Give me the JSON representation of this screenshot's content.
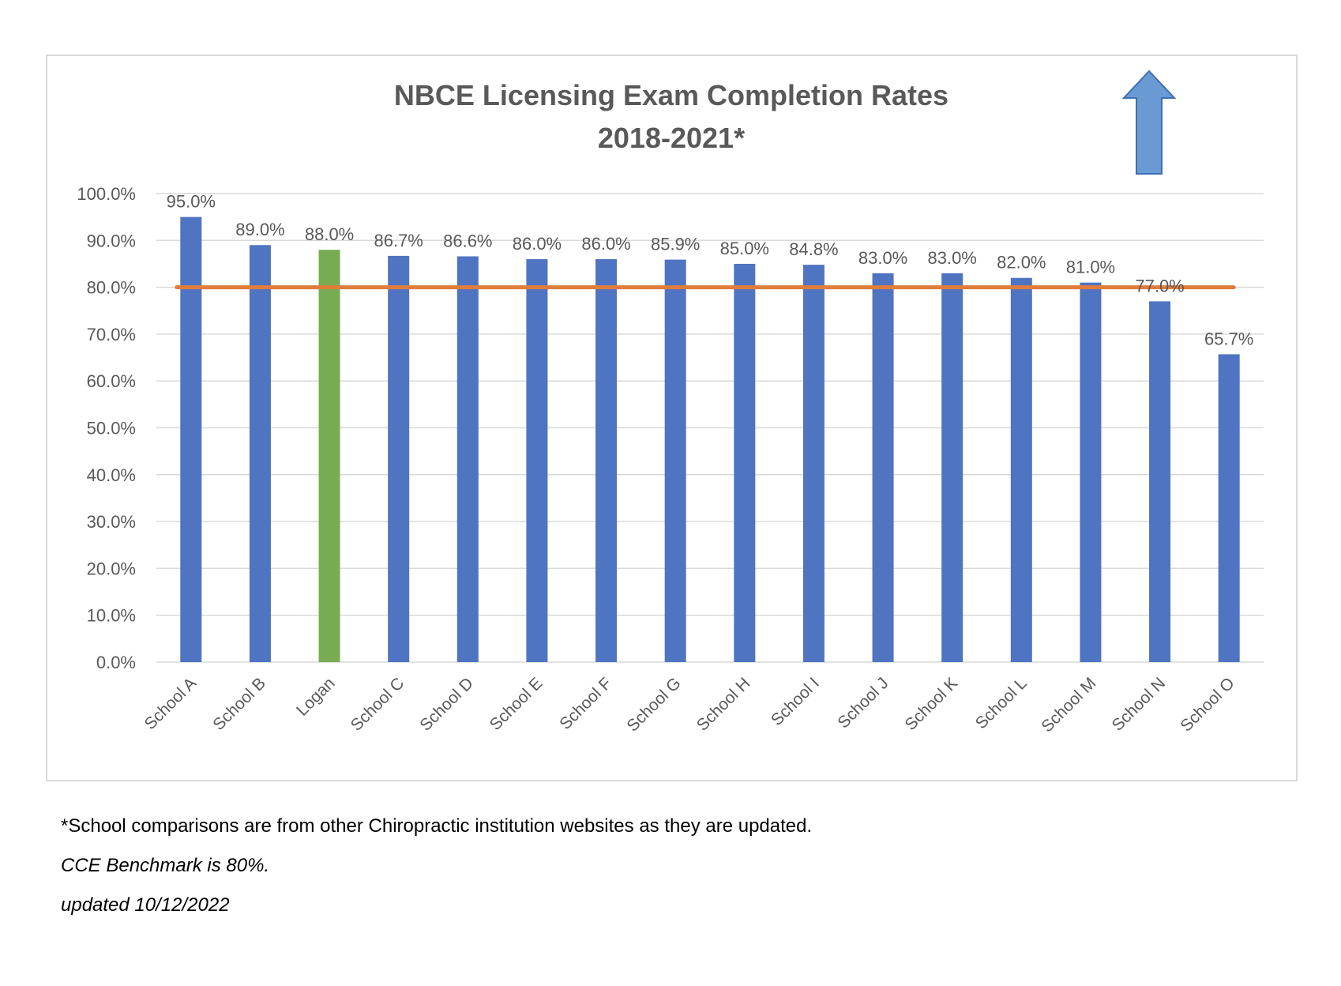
{
  "chart_data": {
    "type": "bar",
    "title": "NBCE Licensing Exam Completion Rates",
    "subtitle": "2018-2021*",
    "categories": [
      "School A",
      "School B",
      "Logan",
      "School C",
      "School D",
      "School E",
      "School F",
      "School G",
      "School H",
      "School I",
      "School J",
      "School K",
      "School L",
      "School M",
      "School N",
      "School O"
    ],
    "values": [
      95.0,
      89.0,
      88.0,
      86.7,
      86.6,
      86.0,
      86.0,
      85.9,
      85.0,
      84.8,
      83.0,
      83.0,
      82.0,
      81.0,
      77.0,
      65.7
    ],
    "value_labels": [
      "95.0%",
      "89.0%",
      "88.0%",
      "86.7%",
      "86.6%",
      "86.0%",
      "86.0%",
      "85.9%",
      "85.0%",
      "84.8%",
      "83.0%",
      "83.0%",
      "82.0%",
      "81.0%",
      "77.0%",
      "65.7%"
    ],
    "y_ticks": [
      0,
      10,
      20,
      30,
      40,
      50,
      60,
      70,
      80,
      90,
      100
    ],
    "y_tick_labels": [
      "0.0%",
      "10.0%",
      "20.0%",
      "30.0%",
      "40.0%",
      "50.0%",
      "60.0%",
      "70.0%",
      "80.0%",
      "90.0%",
      "100.0%"
    ],
    "ylim": [
      0,
      100
    ],
    "benchmark": 80,
    "grid": true,
    "legend": "none",
    "highlight_category": "Logan",
    "colors": {
      "bar": "#4f74c1",
      "highlight": "#78ac52",
      "benchmark": "#e07d3c",
      "arrow": "#6a9ad4",
      "grid": "#d9d9d9",
      "text": "#595959"
    },
    "annotation_icon": "up-arrow-icon"
  },
  "footnotes": {
    "source": "*School comparisons are from other Chiropractic institution websites as they are updated.",
    "benchmark": "CCE Benchmark is 80%.",
    "updated": "updated 10/12/2022"
  }
}
